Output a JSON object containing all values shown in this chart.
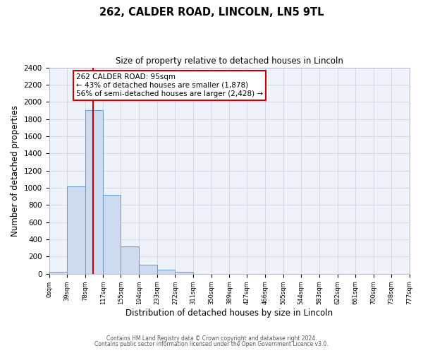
{
  "title": "262, CALDER ROAD, LINCOLN, LN5 9TL",
  "subtitle": "Size of property relative to detached houses in Lincoln",
  "xlabel": "Distribution of detached houses by size in Lincoln",
  "ylabel": "Number of detached properties",
  "bin_edges": [
    0,
    39,
    78,
    117,
    155,
    194,
    233,
    272,
    311,
    350,
    389,
    427,
    466,
    505,
    544,
    583,
    622,
    661,
    700,
    738,
    777
  ],
  "bin_heights": [
    20,
    1020,
    1900,
    920,
    320,
    105,
    45,
    20,
    0,
    0,
    0,
    0,
    0,
    0,
    0,
    0,
    0,
    0,
    0,
    0
  ],
  "bar_facecolor": "#cddaf0",
  "bar_edgecolor": "#6699cc",
  "property_size": 95,
  "property_line_color": "#cc0000",
  "annotation_text": "262 CALDER ROAD: 95sqm\n← 43% of detached houses are smaller (1,878)\n56% of semi-detached houses are larger (2,428) →",
  "annotation_box_edgecolor": "#cc0000",
  "annotation_box_facecolor": "#ffffff",
  "ylim": [
    0,
    2400
  ],
  "yticks": [
    0,
    200,
    400,
    600,
    800,
    1000,
    1200,
    1400,
    1600,
    1800,
    2000,
    2200,
    2400
  ],
  "footer_line1": "Contains HM Land Registry data © Crown copyright and database right 2024.",
  "footer_line2": "Contains public sector information licensed under the Open Government Licence v3.0.",
  "background_color": "#eef2fa",
  "grid_color": "#d0d4e0",
  "fig_width": 6.0,
  "fig_height": 5.0,
  "dpi": 100
}
